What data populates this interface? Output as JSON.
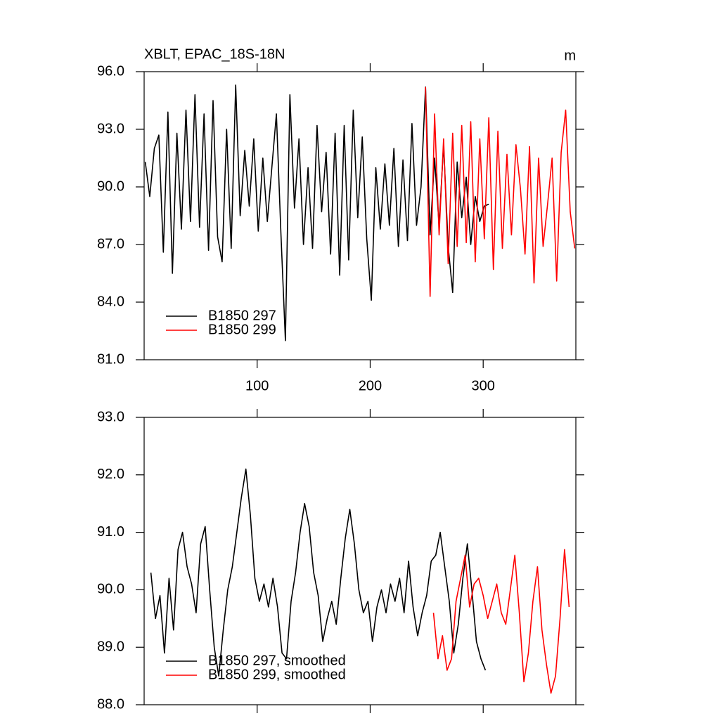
{
  "chart_data": [
    {
      "type": "line",
      "title": "XBLT, EPAC_18S-18N",
      "units": "m",
      "xlim": [
        0,
        382
      ],
      "ylim": [
        81,
        96
      ],
      "xticks": [
        100,
        200,
        300
      ],
      "yticks": [
        {
          "value": 81,
          "label": "81.0"
        },
        {
          "value": 84,
          "label": "84.0"
        },
        {
          "value": 87,
          "label": "87.0"
        },
        {
          "value": 90,
          "label": "90.0"
        },
        {
          "value": 93,
          "label": "93.0"
        },
        {
          "value": 96,
          "label": "96.0"
        }
      ],
      "legend": "lower left",
      "series": [
        {
          "name": "B1850 297",
          "color": "#000000",
          "x": [
            1,
            5,
            9,
            13,
            17,
            21,
            25,
            29,
            33,
            37,
            41,
            45,
            49,
            53,
            57,
            61,
            65,
            69,
            73,
            77,
            81,
            85,
            89,
            93,
            97,
            101,
            105,
            109,
            113,
            117,
            121,
            125,
            129,
            133,
            137,
            141,
            145,
            149,
            153,
            157,
            161,
            165,
            169,
            173,
            177,
            181,
            185,
            189,
            193,
            197,
            201,
            205,
            209,
            213,
            217,
            221,
            225,
            229,
            233,
            237,
            241,
            245,
            249,
            253,
            257,
            261,
            265,
            269,
            273,
            277,
            281,
            285,
            289,
            293,
            297,
            301,
            305
          ],
          "values": [
            91.3,
            89.5,
            92.0,
            92.7,
            86.6,
            93.9,
            85.5,
            92.8,
            87.8,
            94.0,
            88.2,
            94.8,
            87.9,
            93.8,
            86.7,
            94.5,
            87.4,
            86.1,
            93.0,
            86.8,
            95.3,
            88.5,
            91.9,
            89.0,
            92.5,
            87.7,
            91.5,
            88.2,
            91.0,
            93.8,
            87.6,
            82.0,
            94.8,
            88.9,
            92.5,
            87.0,
            91.0,
            86.8,
            93.2,
            88.7,
            91.8,
            86.5,
            92.8,
            85.4,
            93.2,
            86.2,
            94.0,
            88.4,
            92.6,
            87.3,
            84.1,
            91.0,
            87.8,
            91.2,
            88.0,
            92.0,
            86.9,
            91.4,
            87.2,
            93.3,
            88.0,
            90.0,
            95.2,
            87.5,
            91.5,
            88.0,
            92.2,
            86.9,
            84.5,
            91.3,
            88.4,
            90.5,
            87.0,
            89.5,
            88.2,
            89.0,
            89.1
          ]
        },
        {
          "name": "B1850 299",
          "color": "#ff0000",
          "x": [
            249,
            253,
            257,
            261,
            265,
            269,
            273,
            277,
            281,
            285,
            289,
            293,
            297,
            301,
            305,
            309,
            313,
            317,
            321,
            325,
            329,
            333,
            337,
            341,
            345,
            349,
            353,
            357,
            361,
            365,
            369,
            373,
            377,
            381
          ],
          "values": [
            95.2,
            84.3,
            93.8,
            87.5,
            92.5,
            86.0,
            92.8,
            86.9,
            93.2,
            87.1,
            93.4,
            86.1,
            92.5,
            87.3,
            93.6,
            85.7,
            92.9,
            86.8,
            91.7,
            87.5,
            92.2,
            89.9,
            86.5,
            92.1,
            85.0,
            91.5,
            86.9,
            89.1,
            91.5,
            85.1,
            91.8,
            94.0,
            88.7,
            86.8
          ]
        }
      ]
    },
    {
      "type": "line",
      "xlim": [
        0,
        382
      ],
      "ylim": [
        88,
        93
      ],
      "xticks": [
        100,
        200,
        300
      ],
      "xtick_labels": false,
      "yticks": [
        {
          "value": 88,
          "label": "88.0"
        },
        {
          "value": 89,
          "label": "89.0"
        },
        {
          "value": 90,
          "label": "90.0"
        },
        {
          "value": 91,
          "label": "91.0"
        },
        {
          "value": 92,
          "label": "92.0"
        },
        {
          "value": 93,
          "label": "93.0"
        }
      ],
      "legend": "lower left",
      "series": [
        {
          "name": "B1850 297, smoothed",
          "color": "#000000",
          "x": [
            6,
            10,
            14,
            18,
            22,
            26,
            30,
            34,
            38,
            42,
            46,
            50,
            54,
            58,
            62,
            66,
            70,
            74,
            78,
            82,
            86,
            90,
            94,
            98,
            102,
            106,
            110,
            114,
            118,
            122,
            126,
            130,
            134,
            138,
            142,
            146,
            150,
            154,
            158,
            162,
            166,
            170,
            174,
            178,
            182,
            186,
            190,
            194,
            198,
            202,
            206,
            210,
            214,
            218,
            222,
            226,
            230,
            234,
            238,
            242,
            246,
            250,
            254,
            258,
            262,
            266,
            270,
            274,
            278,
            282,
            286,
            290,
            294,
            298,
            302
          ],
          "values": [
            90.3,
            89.5,
            89.9,
            88.9,
            90.2,
            89.3,
            90.7,
            91.0,
            90.4,
            90.1,
            89.6,
            90.8,
            91.1,
            90.0,
            89.0,
            88.5,
            89.3,
            90.0,
            90.4,
            91.0,
            91.6,
            92.1,
            91.3,
            90.2,
            89.8,
            90.1,
            89.7,
            90.2,
            89.7,
            88.9,
            88.8,
            89.8,
            90.3,
            91.0,
            91.5,
            91.1,
            90.3,
            89.9,
            89.1,
            89.5,
            89.8,
            89.4,
            90.2,
            90.9,
            91.4,
            90.8,
            90.0,
            89.6,
            89.8,
            89.1,
            89.7,
            90.0,
            89.6,
            90.1,
            89.8,
            90.2,
            89.6,
            90.5,
            89.7,
            89.2,
            89.6,
            89.9,
            90.5,
            90.6,
            91.0,
            90.4,
            89.8,
            88.9,
            89.4,
            90.2,
            90.8,
            90.0,
            89.1,
            88.8,
            88.6
          ]
        },
        {
          "name": "B1850 299, smoothed",
          "color": "#ff0000",
          "x": [
            256,
            260,
            264,
            268,
            272,
            276,
            280,
            284,
            288,
            292,
            296,
            300,
            304,
            308,
            312,
            316,
            320,
            324,
            328,
            332,
            336,
            340,
            344,
            348,
            352,
            356,
            360,
            364,
            368,
            372,
            376
          ],
          "values": [
            89.6,
            88.8,
            89.2,
            88.6,
            88.8,
            89.8,
            90.2,
            90.6,
            89.7,
            90.1,
            90.2,
            89.9,
            89.5,
            89.8,
            90.1,
            89.6,
            89.4,
            90.0,
            90.6,
            89.6,
            88.4,
            88.9,
            89.8,
            90.4,
            89.3,
            88.7,
            88.2,
            88.5,
            89.5,
            90.7,
            89.7
          ]
        }
      ]
    }
  ]
}
